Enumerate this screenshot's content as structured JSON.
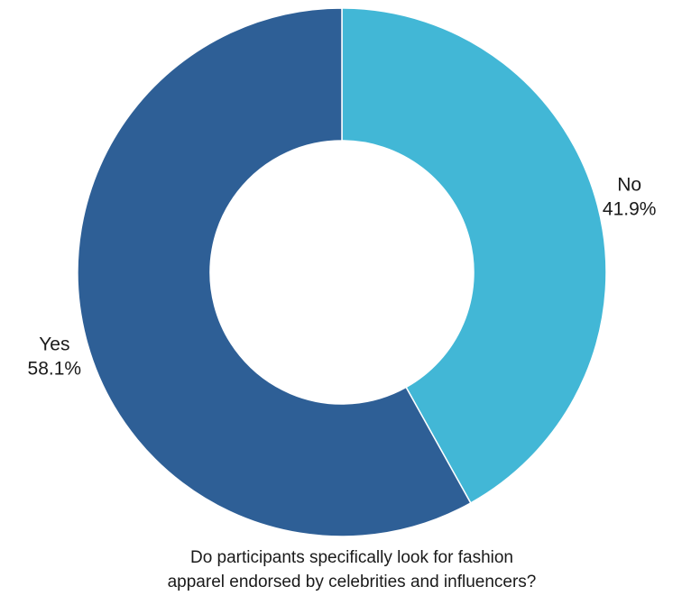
{
  "chart_data": {
    "type": "pie",
    "style": "donut",
    "title_lines": [
      "Do participants specifically look for fashion",
      "apparel endorsed by celebrities and influencers?"
    ],
    "slices": [
      {
        "label": "No",
        "value": 41.9,
        "value_label": "41.9%",
        "color": "#42b7d6"
      },
      {
        "label": "Yes",
        "value": 58.1,
        "value_label": "58.1%",
        "color": "#2e5f96"
      }
    ],
    "start_angle": "12 o'clock",
    "direction": "clockwise",
    "label_placement": "outside",
    "legend": "none"
  }
}
